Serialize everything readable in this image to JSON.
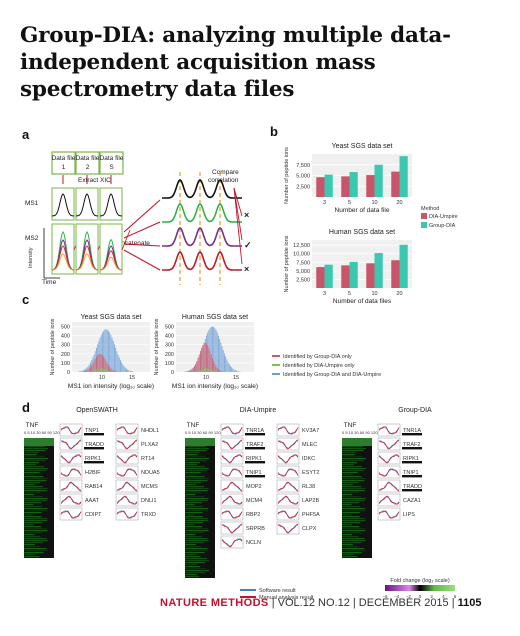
{
  "title": "Group-DIA: analyzing multiple data-independent acquisition mass spectrometry data files",
  "panel_labels": {
    "a": "a",
    "b": "b",
    "c": "c",
    "d": "d"
  },
  "panel_a": {
    "data_file_label": "Data file",
    "files": [
      "1",
      "2",
      "S"
    ],
    "extract_xic": "Extract XIC",
    "ms1": "MS1",
    "ms2": "MS2",
    "intensity": "Intensity",
    "time": "Time",
    "concatenate": "Concatenate",
    "compare_correlation": "Compare correlation",
    "marks": [
      "×",
      "✓",
      "×"
    ]
  },
  "panel_b": {
    "legend_title": "Method",
    "legend": [
      "DIA-Umpire",
      "Group-DIA"
    ],
    "colors": {
      "dia_umpire": "#c8556a",
      "group_dia": "#3cc7b0"
    }
  },
  "panel_c": {
    "legend": [
      "Identified by Group-DIA only",
      "Identified by DIA-Umpire only",
      "Identified by Group-DIA and DIA-Umpire"
    ],
    "colors": {
      "group_only": "#d15a6a",
      "umpire_only": "#7fbf5a",
      "both": "#6a9ed6"
    }
  },
  "panel_d": {
    "methods": [
      "OpenSWATH",
      "DIA-Umpire",
      "Group-DIA"
    ],
    "tnf": "TNF",
    "openswath_cols": [
      [
        "TNP1",
        "TRADD",
        "RIPK1",
        "H2BIF",
        "RAB14",
        "AAAT",
        "CDIPT"
      ],
      [
        "NHDL1",
        "PLXA2",
        "RT14",
        "NDUA5",
        "MCMS",
        "DNLI1",
        "TRXD"
      ]
    ],
    "umpire_cols": [
      [
        "TNR1A",
        "TRAF2",
        "RIPK1",
        "TNIP1",
        "MOP2",
        "MCM4",
        "RBP2",
        "SRPRB",
        "NCLN"
      ],
      [
        "KV3A7",
        "MLEC",
        "IDKC",
        "ESYT2",
        "RL38",
        "LAP2B",
        "PHF5A",
        "CLPX"
      ]
    ],
    "groupdia_cols": [
      [
        "TNR1A",
        "TRAF2",
        "RIPK1",
        "TNIP1",
        "TRADD",
        "CAZA1",
        "LIPS"
      ]
    ],
    "legend_lines": [
      "Software result",
      "Manual analysis result"
    ],
    "colorbar_title": "Fold change (log₂ scale)",
    "colorbar_ticks": [
      "−6",
      "−4",
      "−2",
      "0",
      "2",
      "4",
      "6"
    ],
    "colors": {
      "software": "#4a7ec2",
      "manual": "#c0182c"
    }
  },
  "chart_data": [
    {
      "type": "bar",
      "title": "Yeast SGS data set",
      "categories": [
        "3",
        "5",
        "10",
        "20"
      ],
      "xlabel": "Number of data file",
      "ylabel": "Number of peptide ions",
      "ylim": [
        0,
        10000
      ],
      "yticks": [
        "2,500",
        "5,000",
        "7,500"
      ],
      "series": [
        {
          "name": "DIA-Umpire",
          "values": [
            4600,
            4800,
            5100,
            5900
          ]
        },
        {
          "name": "Group-DIA",
          "values": [
            5200,
            5800,
            7500,
            9500
          ]
        }
      ]
    },
    {
      "type": "bar",
      "title": "Human SGS data set",
      "categories": [
        "3",
        "5",
        "10",
        "20"
      ],
      "xlabel": "Number of data files",
      "ylabel": "Number of peptide ions",
      "ylim": [
        0,
        14000
      ],
      "yticks": [
        "2,500",
        "5,000",
        "7,500",
        "10,000",
        "12,500"
      ],
      "series": [
        {
          "name": "DIA-Umpire",
          "values": [
            6100,
            6600,
            7200,
            8100
          ]
        },
        {
          "name": "Group-DIA",
          "values": [
            6800,
            7600,
            10200,
            12600
          ]
        }
      ]
    },
    {
      "type": "histogram",
      "title": "Yeast SGS data set",
      "xlabel": "MS1 ion intensity (log₁₀ scale)",
      "ylabel": "Number of peptide ions",
      "xticks": [
        "10",
        "15"
      ],
      "yticks": [
        "0",
        "100",
        "200",
        "300",
        "400",
        "500"
      ],
      "ylim": [
        0,
        550
      ],
      "series": [
        {
          "name": "Identified by Group-DIA only",
          "peak": 9.6,
          "height": 200
        },
        {
          "name": "Identified by DIA-Umpire only",
          "peak": 9.8,
          "height": 40
        },
        {
          "name": "Identified by Group-DIA and DIA-Umpire",
          "peak": 10.6,
          "height": 470
        }
      ]
    },
    {
      "type": "histogram",
      "title": "Human SGS data set",
      "xlabel": "MS1 ion intensity (log₁₀ scale)",
      "ylabel": "Number of peptide ions",
      "xticks": [
        "10",
        "15"
      ],
      "yticks": [
        "0",
        "100",
        "200",
        "300",
        "400",
        "500"
      ],
      "ylim": [
        0,
        550
      ],
      "series": [
        {
          "name": "Identified by Group-DIA only",
          "peak": 9.8,
          "height": 320
        },
        {
          "name": "Identified by DIA-Umpire only",
          "peak": 10.0,
          "height": 40
        },
        {
          "name": "Identified by Group-DIA and DIA-Umpire",
          "peak": 11.0,
          "height": 500
        }
      ]
    }
  ],
  "footer": {
    "journal": "NATURE METHODS",
    "issue": "VOL.12 NO.12",
    "date": "DECEMBER 2015",
    "page": "1105"
  }
}
